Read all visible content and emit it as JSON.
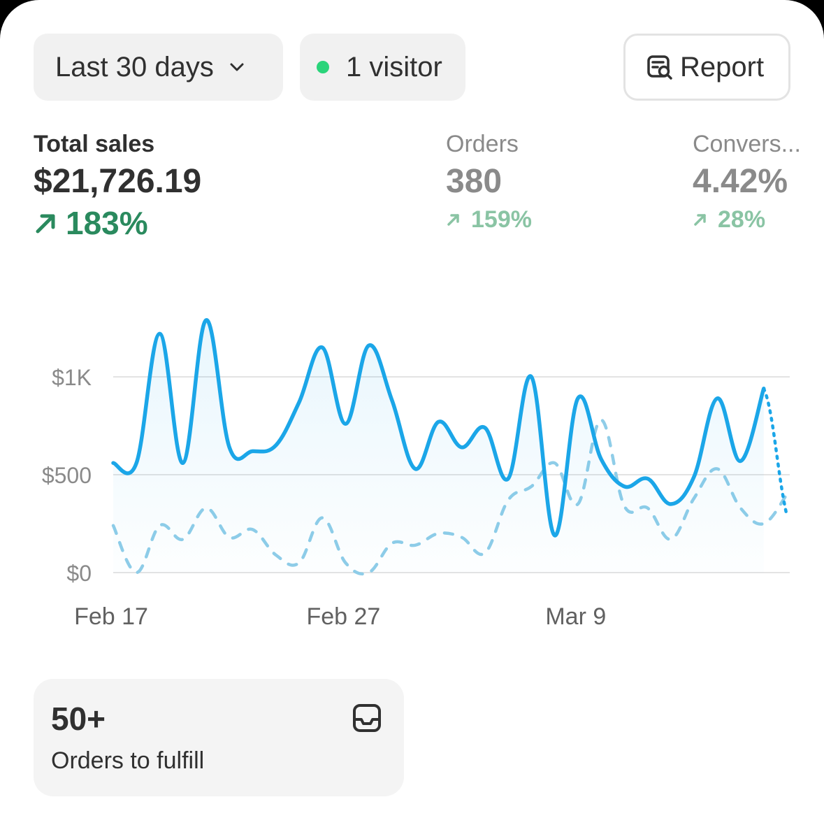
{
  "toolbar": {
    "date_range_label": "Last 30 days",
    "visitor_label": "1 visitor",
    "report_label": "Report"
  },
  "metrics": [
    {
      "label": "Total sales",
      "value": "$21,726.19",
      "delta": "183%"
    },
    {
      "label": "Orders",
      "value": "380",
      "delta": "159%"
    },
    {
      "label": "Convers...",
      "value": "4.42%",
      "delta": "28%"
    }
  ],
  "chart_data": {
    "type": "line",
    "x_ticks": [
      "Feb 17",
      "Feb 27",
      "Mar 9"
    ],
    "y_ticks": [
      "$0",
      "$500",
      "$1K"
    ],
    "ylim": [
      0,
      1000
    ],
    "series": [
      {
        "style": "solid",
        "color": "#1ba6e8",
        "x": [
          "Feb 17",
          "Feb 18",
          "Feb 19",
          "Feb 20",
          "Feb 21",
          "Feb 22",
          "Feb 23",
          "Feb 24",
          "Feb 25",
          "Feb 26",
          "Feb 27",
          "Feb 28",
          "Mar 1",
          "Mar 2",
          "Mar 3",
          "Mar 4",
          "Mar 5",
          "Mar 6",
          "Mar 7",
          "Mar 8",
          "Mar 9",
          "Mar 10",
          "Mar 11",
          "Mar 12",
          "Mar 13",
          "Mar 14",
          "Mar 15",
          "Mar 16",
          "Mar 17",
          "Mar 18"
        ],
        "values": [
          560,
          560,
          1220,
          560,
          1290,
          640,
          620,
          650,
          870,
          1150,
          760,
          1160,
          880,
          530,
          770,
          640,
          740,
          480,
          1000,
          190,
          890,
          580,
          440,
          480,
          350,
          490,
          890,
          570,
          940,
          290
        ]
      },
      {
        "style": "dashed",
        "color": "#8fcde8",
        "x": [
          "Feb 17",
          "Feb 18",
          "Feb 19",
          "Feb 20",
          "Feb 21",
          "Feb 22",
          "Feb 23",
          "Feb 24",
          "Feb 25",
          "Feb 26",
          "Feb 27",
          "Feb 28",
          "Mar 1",
          "Mar 2",
          "Mar 3",
          "Mar 4",
          "Mar 5",
          "Mar 6",
          "Mar 7",
          "Mar 8",
          "Mar 9",
          "Mar 10",
          "Mar 11",
          "Mar 12",
          "Mar 13",
          "Mar 14",
          "Mar 15",
          "Mar 16",
          "Mar 17",
          "Mar 18"
        ],
        "values": [
          240,
          0,
          240,
          170,
          330,
          180,
          220,
          90,
          50,
          280,
          50,
          0,
          150,
          140,
          200,
          180,
          100,
          370,
          440,
          560,
          350,
          780,
          340,
          330,
          170,
          380,
          530,
          330,
          250,
          400
        ]
      }
    ]
  },
  "fulfill_card": {
    "value": "50+",
    "label": "Orders to fulfill"
  }
}
